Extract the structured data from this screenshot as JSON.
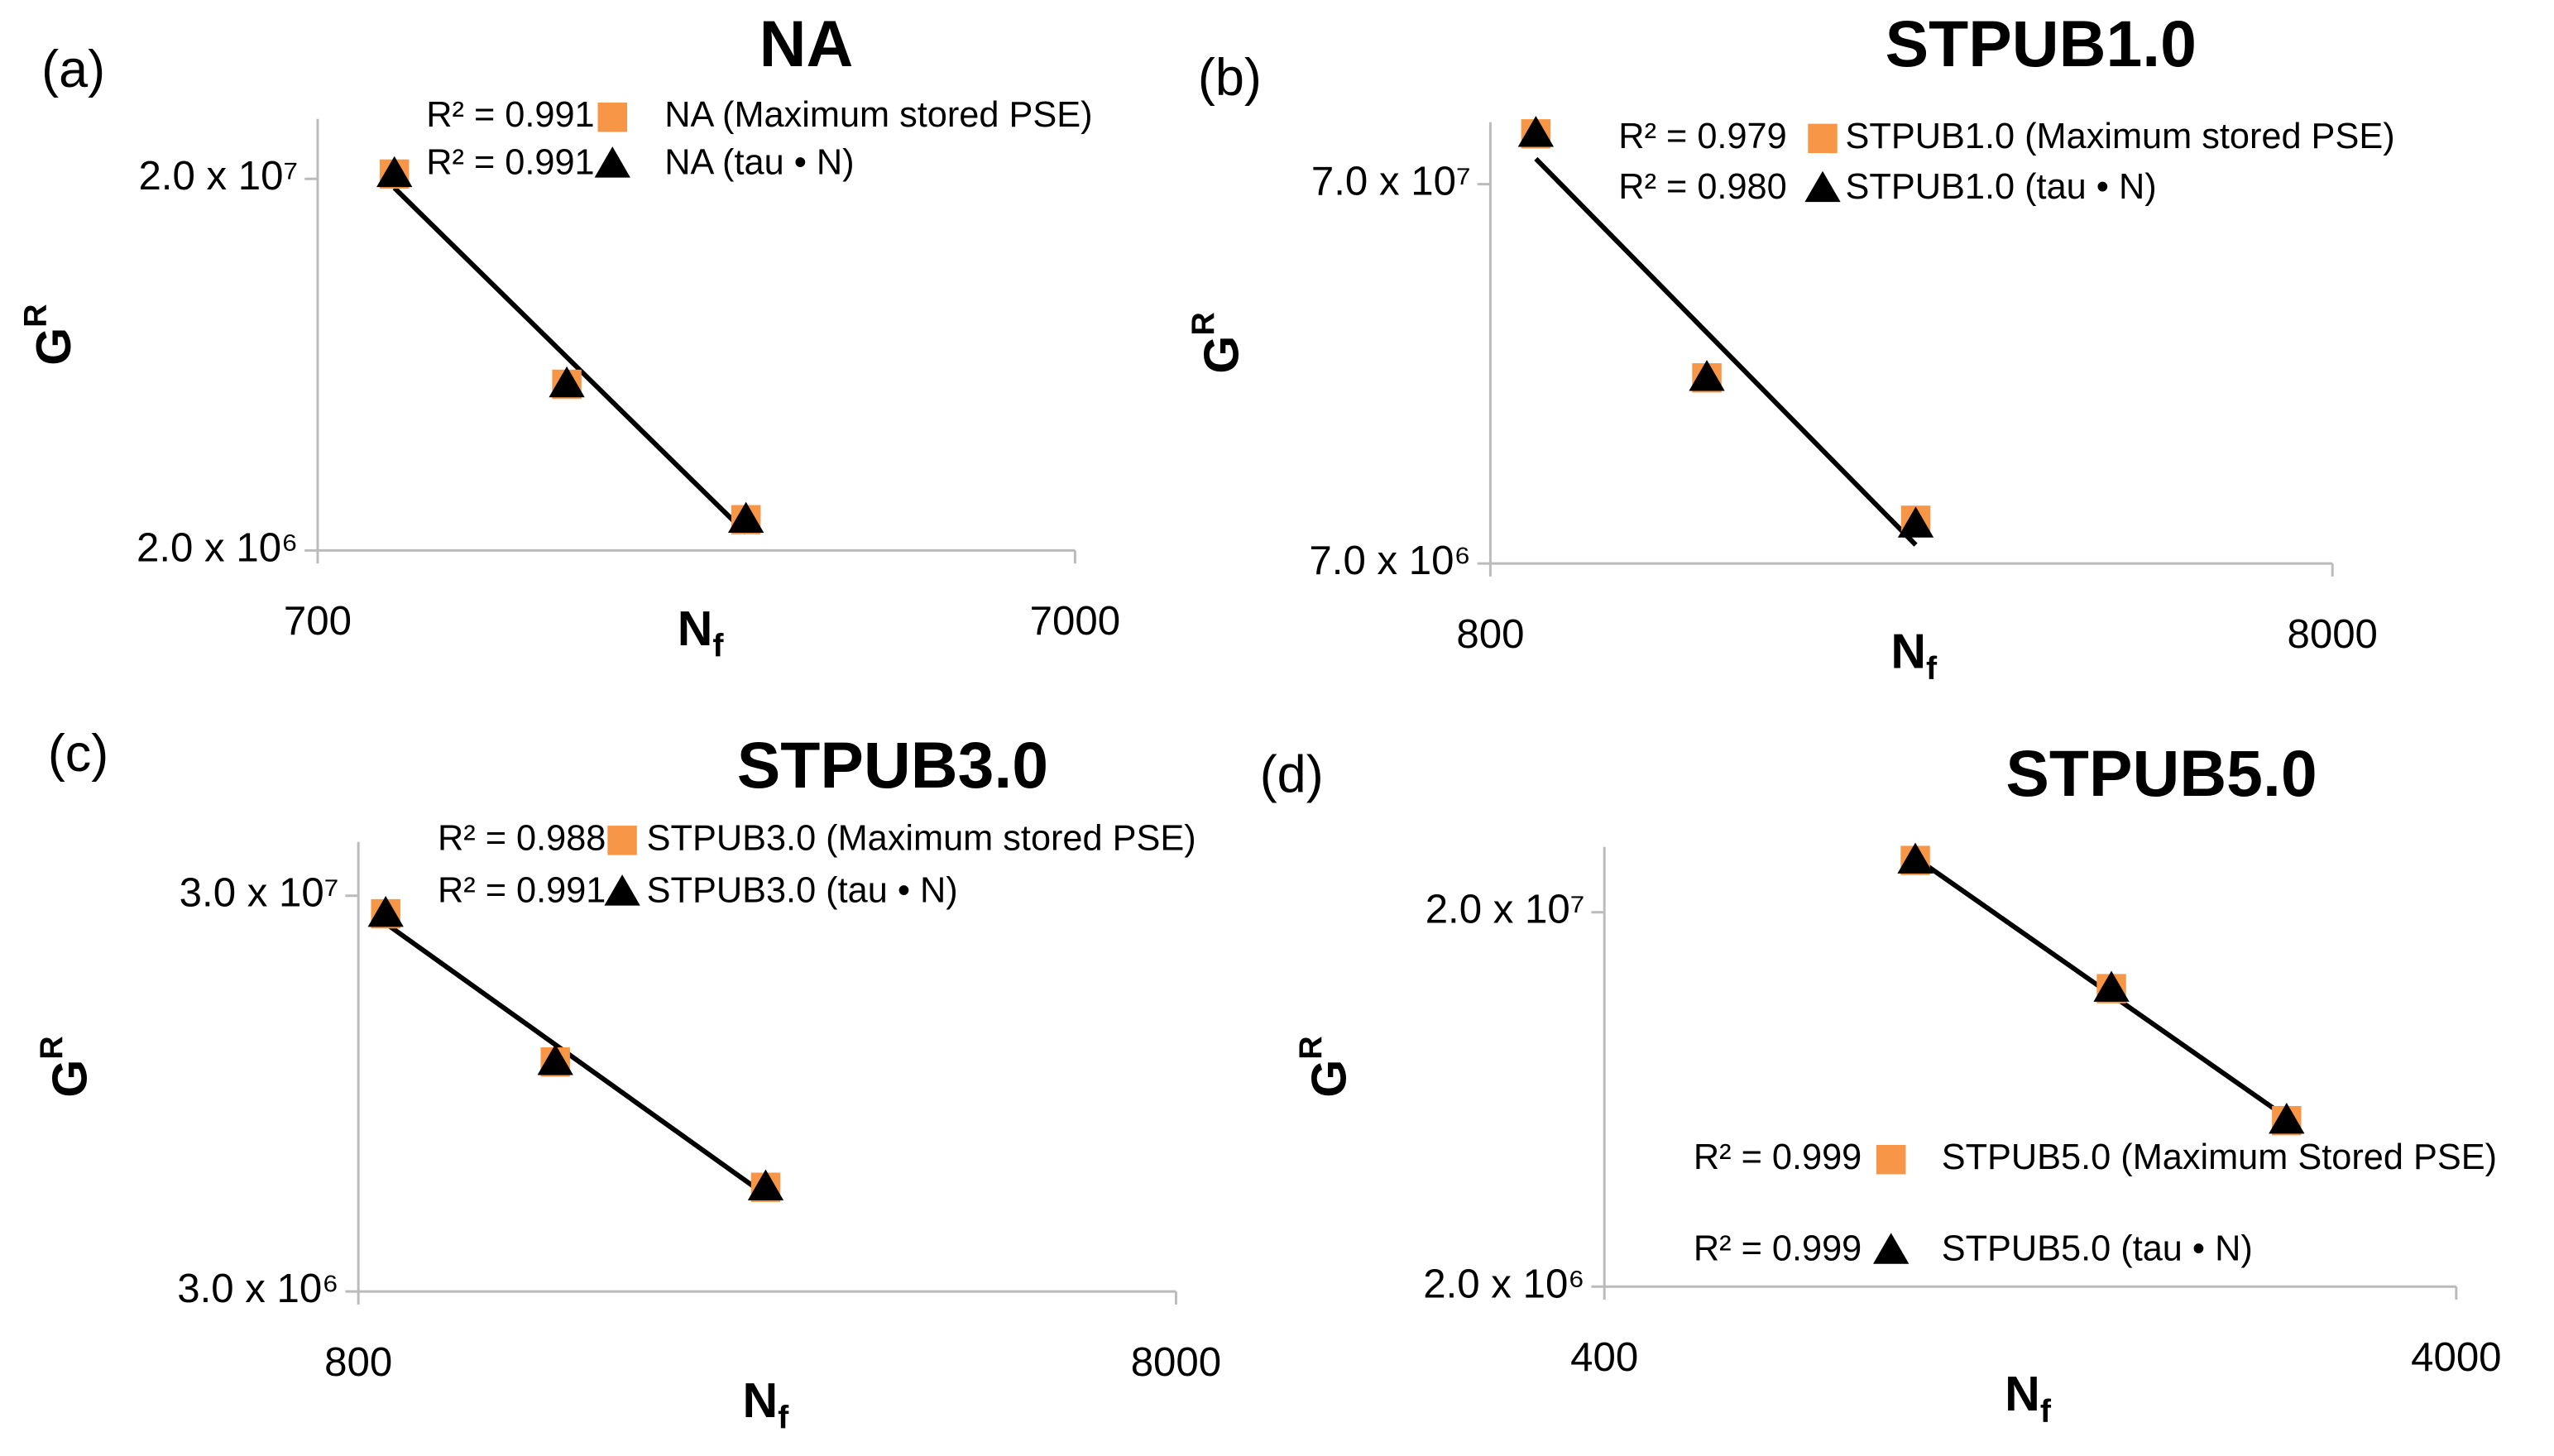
{
  "chart_data": [
    {
      "type": "scatter",
      "panel": "(a)",
      "title": "NA",
      "x_label": "N",
      "x_label_subscript": "f",
      "y_label": "G",
      "y_label_superscript": "R",
      "log_x": true,
      "log_y": true,
      "xlim": [
        700,
        7000
      ],
      "xticks": [
        700,
        7000
      ],
      "ylim": [
        2000000,
        29000000
      ],
      "yticks": [
        {
          "value": 2000000,
          "label": "2.0 x 10⁶"
        },
        {
          "value": 20000000,
          "label": "2.0 x 10⁷"
        }
      ],
      "x": [
        884,
        1493,
        2574
      ],
      "series": [
        {
          "name": "NA (Maximum stored PSE)",
          "r2_label": "R² = 0.991",
          "marker": "square",
          "color": "#f79646",
          "values": [
            20600000,
            5600000,
            2420000
          ]
        },
        {
          "name": "NA (tau • N)",
          "r2_label": "R² = 0.991",
          "marker": "triangle",
          "color": "#000000",
          "trendline": true,
          "values": [
            20600000,
            5600000,
            2420000
          ]
        }
      ]
    },
    {
      "type": "scatter",
      "panel": "(b)",
      "title": "STPUB1.0",
      "x_label": "N",
      "x_label_subscript": "f",
      "y_label": "G",
      "y_label_superscript": "R",
      "log_x": true,
      "log_y": true,
      "xlim": [
        800,
        8000
      ],
      "xticks": [
        800,
        8000
      ],
      "ylim": [
        7000000,
        102000000
      ],
      "yticks": [
        {
          "value": 7000000,
          "label": "7.0 x 10⁶"
        },
        {
          "value": 70000000,
          "label": "7.0 x 10⁷"
        }
      ],
      "x": [
        906,
        1446,
        2560
      ],
      "series": [
        {
          "name": "STPUB1.0 (Maximum stored PSE)",
          "r2_label": "R² = 0.979",
          "marker": "square",
          "color": "#f79646",
          "values": [
            95000000,
            21600000,
            9100000
          ]
        },
        {
          "name": "STPUB1.0 (tau • N)",
          "r2_label": "R² = 0.980",
          "marker": "triangle",
          "color": "#000000",
          "trendline": true,
          "values": [
            95000000,
            21600000,
            8870000
          ]
        }
      ]
    },
    {
      "type": "scatter",
      "panel": "(c)",
      "title": "STPUB3.0",
      "x_label": "N",
      "x_label_subscript": "f",
      "y_label": "G",
      "y_label_superscript": "R",
      "log_x": true,
      "log_y": true,
      "xlim": [
        800,
        8000
      ],
      "xticks": [
        800,
        8000
      ],
      "ylim": [
        3000000,
        41000000
      ],
      "yticks": [
        {
          "value": 3000000,
          "label": "3.0 x 10⁶"
        },
        {
          "value": 30000000,
          "label": "3.0 x 10⁷"
        }
      ],
      "x": [
        864,
        1393,
        2519
      ],
      "series": [
        {
          "name": "STPUB3.0 (Maximum stored PSE)",
          "r2_label": "R² = 0.988",
          "marker": "square",
          "color": "#f79646",
          "values": [
            27000000,
            11400000,
            5500000
          ]
        },
        {
          "name": "STPUB3.0 (tau • N)",
          "r2_label": "R² = 0.991",
          "marker": "triangle",
          "color": "#000000",
          "trendline": true,
          "values": [
            27000000,
            11400000,
            5500000
          ]
        }
      ]
    },
    {
      "type": "scatter",
      "panel": "(d)",
      "title": "STPUB5.0",
      "x_label": "N",
      "x_label_subscript": "f",
      "y_label": "G",
      "y_label_superscript": "R",
      "log_x": true,
      "log_y": true,
      "xlim": [
        400,
        4000
      ],
      "xticks": [
        400,
        4000
      ],
      "ylim": [
        2000000,
        29900000
      ],
      "yticks": [
        {
          "value": 2000000,
          "label": "2.0 x 10⁶"
        },
        {
          "value": 20000000,
          "label": "2.0 x 10⁷"
        }
      ],
      "x": [
        927,
        1575,
        2529
      ],
      "series": [
        {
          "name": "STPUB5.0 (Maximum Stored PSE)",
          "r2_label": "R² = 0.999",
          "marker": "square",
          "color": "#f79646",
          "values": [
            27500000,
            12500000,
            5550000
          ]
        },
        {
          "name": "STPUB5.0 (tau • N)",
          "r2_label": "R² = 0.999",
          "marker": "triangle",
          "color": "#000000",
          "trendline": true,
          "values": [
            27500000,
            12500000,
            5550000
          ]
        }
      ]
    }
  ]
}
